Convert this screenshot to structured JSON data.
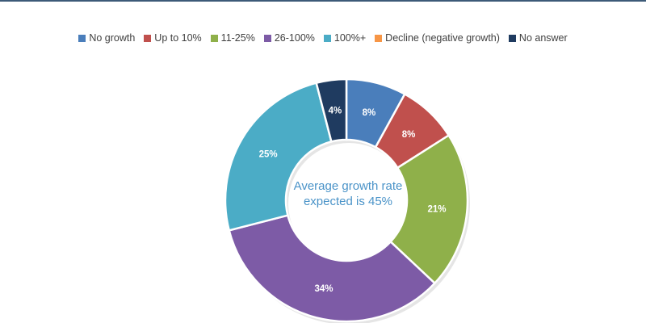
{
  "chart_data": {
    "type": "pie",
    "categories": [
      "No growth",
      "Up to 10%",
      "11-25%",
      "26-100%",
      "100%+",
      "Decline (negative growth)",
      "No answer"
    ],
    "values": [
      8,
      8,
      21,
      34,
      25,
      0,
      4
    ],
    "value_labels": [
      "8%",
      "8%",
      "21%",
      "34%",
      "25%",
      "",
      "4%"
    ],
    "colors": [
      "#4a7ebb",
      "#c0504d",
      "#8fb04a",
      "#7d5ba6",
      "#4bacc6",
      "#f79646",
      "#1f3b60"
    ],
    "legend_position": "top",
    "donut": true,
    "center_text": "Average growth rate expected is 45%"
  }
}
